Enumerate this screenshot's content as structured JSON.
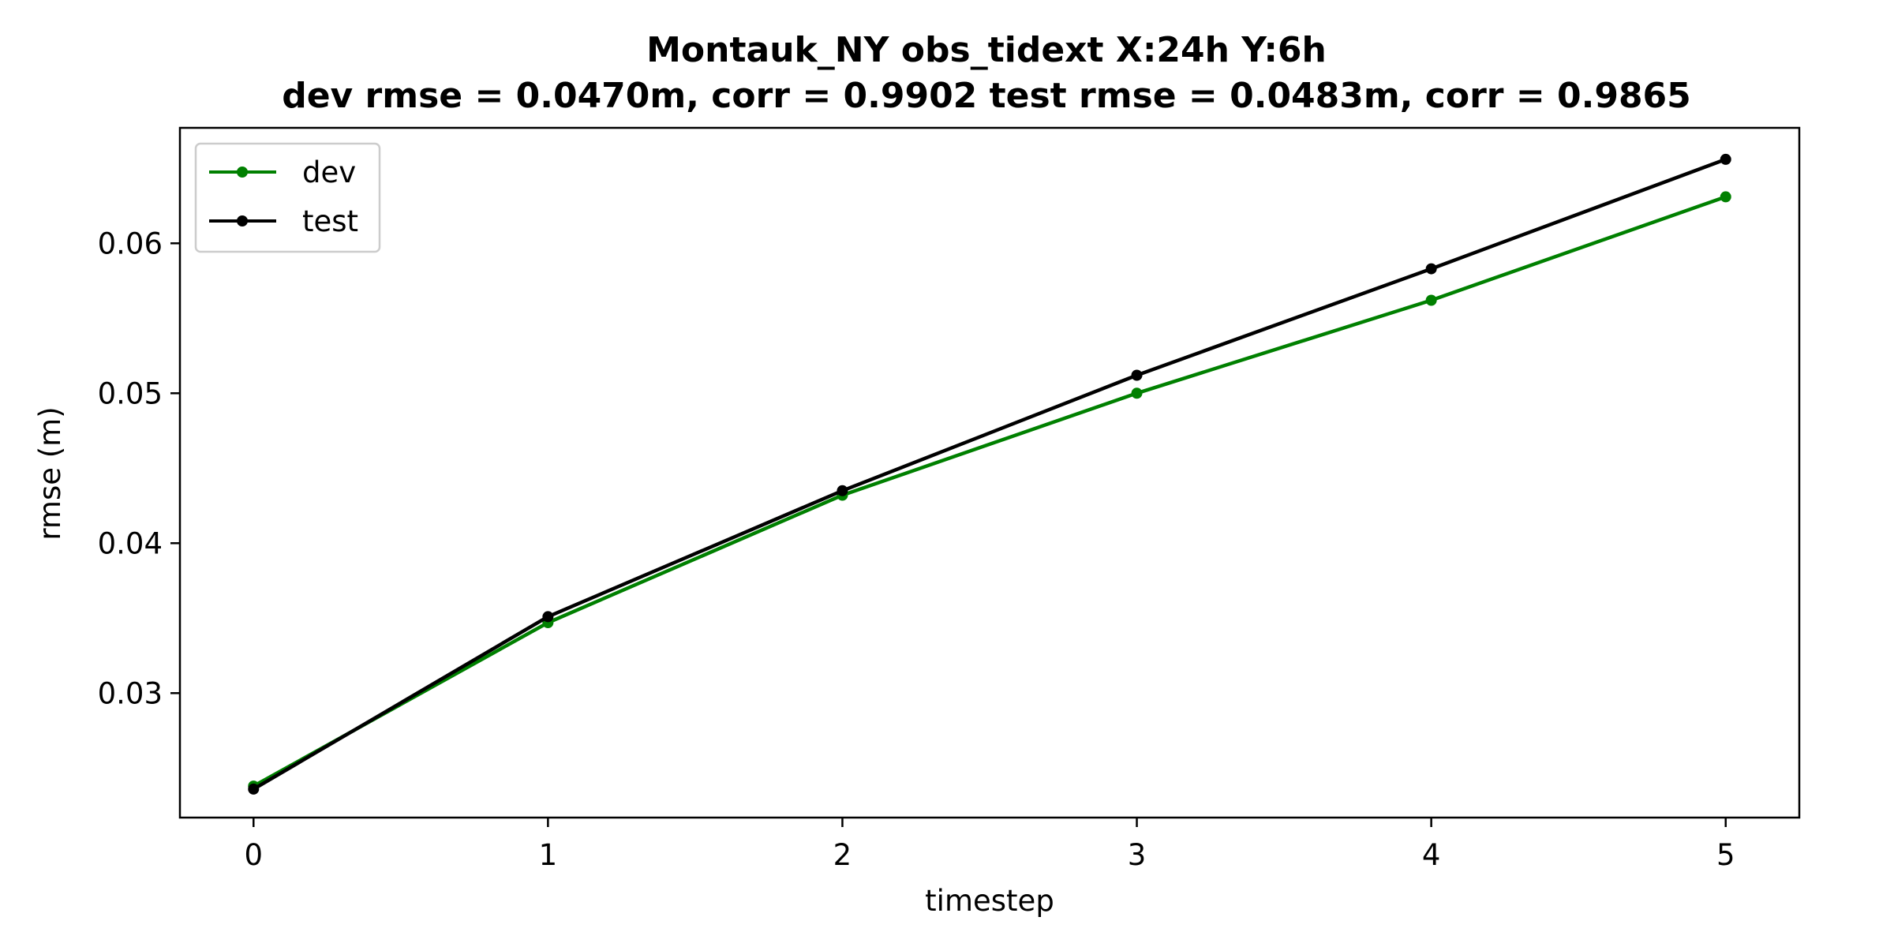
{
  "chart_data": {
    "type": "line",
    "title": "Montauk_NY   obs_tidext   X:24h   Y:6h",
    "subtitle": "dev rmse = 0.0470m, corr = 0.9902   test rmse = 0.0483m, corr = 0.9865",
    "xlabel": "timestep",
    "ylabel": "rmse (m)",
    "x": [
      0,
      1,
      2,
      3,
      4,
      5
    ],
    "xlim": [
      -0.25,
      5.25
    ],
    "ylim": [
      0.0217,
      0.0677
    ],
    "xticks": [
      0,
      1,
      2,
      3,
      4,
      5
    ],
    "yticks": [
      0.03,
      0.04,
      0.05,
      0.06
    ],
    "ytick_labels": [
      "0.03",
      "0.04",
      "0.05",
      "0.06"
    ],
    "grid": false,
    "legend_position": "top-left",
    "series": [
      {
        "name": "dev",
        "color": "#008000",
        "values": [
          0.0238,
          0.0347,
          0.0432,
          0.05,
          0.0562,
          0.0631
        ]
      },
      {
        "name": "test",
        "color": "#000000",
        "values": [
          0.0236,
          0.0351,
          0.0435,
          0.0512,
          0.0583,
          0.0656
        ]
      }
    ]
  }
}
